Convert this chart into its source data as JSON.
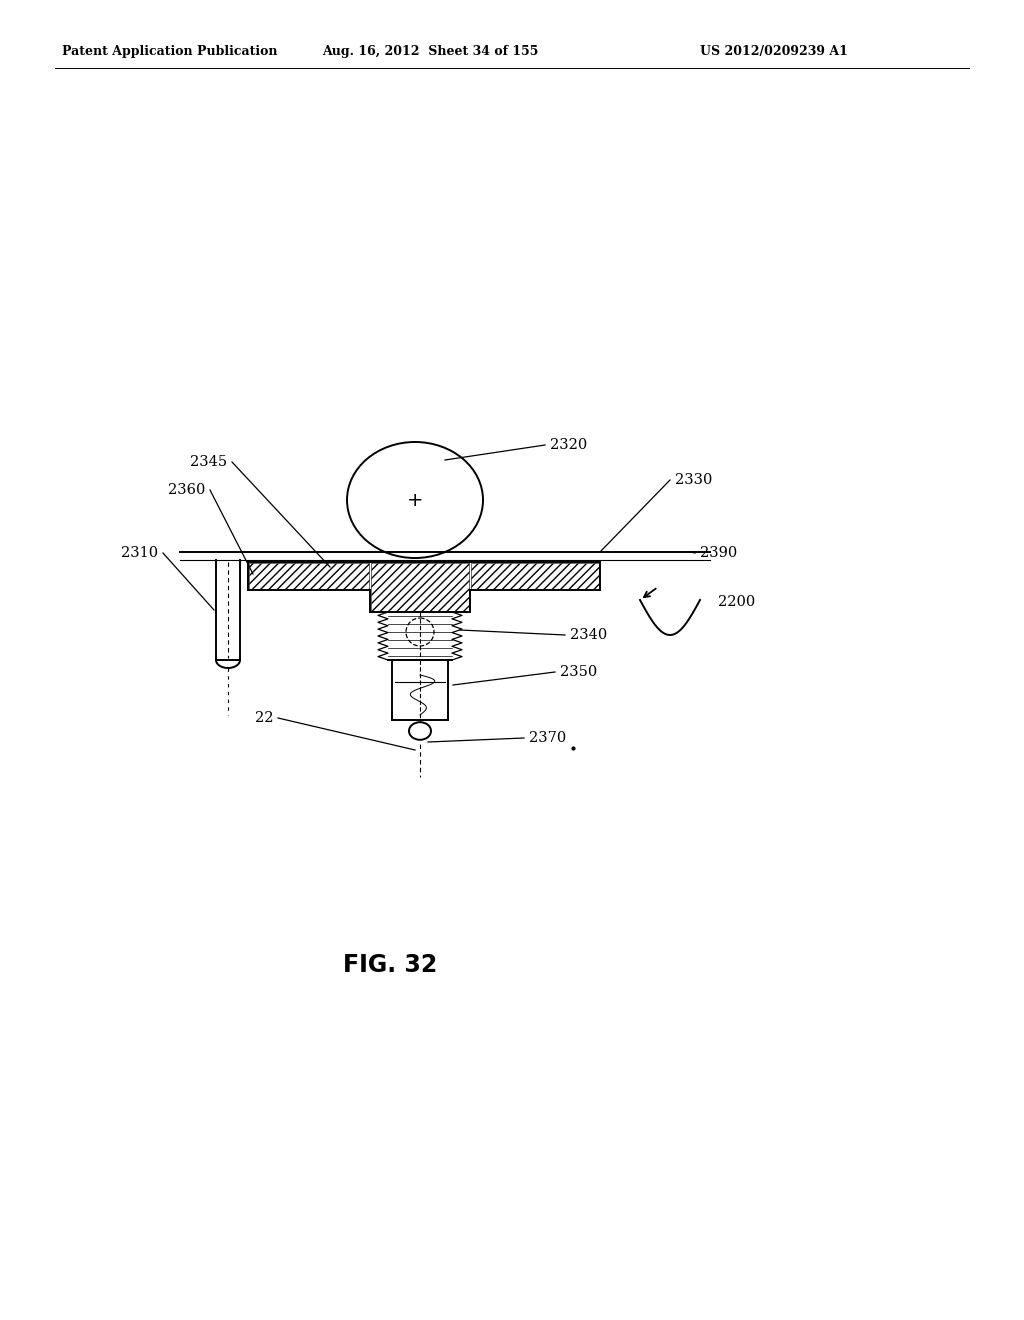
{
  "header_left": "Patent Application Publication",
  "header_center": "Aug. 16, 2012  Sheet 34 of 155",
  "header_right": "US 2012/0209239 A1",
  "figure_label": "FIG. 32",
  "bg": "#ffffff",
  "lc": "#000000",
  "lw": 1.4,
  "fs_label": 10.5,
  "fs_header": 9,
  "fs_fig": 17
}
